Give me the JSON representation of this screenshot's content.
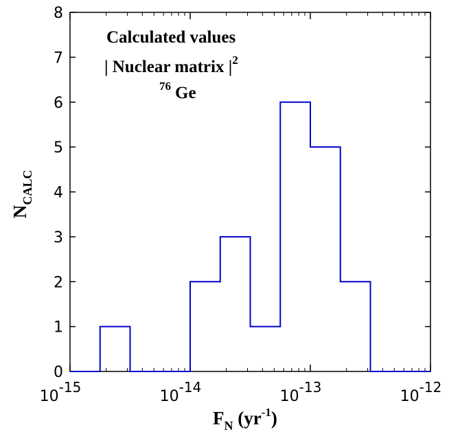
{
  "chart_data": {
    "type": "histogram",
    "xscale": "log",
    "bin_edges_log10": [
      -15.0,
      -14.75,
      -14.5,
      -14.25,
      -14.0,
      -13.75,
      -13.5,
      -13.25,
      -13.0,
      -12.75,
      -12.5,
      -12.25,
      -12.0
    ],
    "counts": [
      0,
      1,
      0,
      0,
      2,
      3,
      1,
      6,
      5,
      2,
      0,
      0
    ],
    "xlim": [
      1e-15,
      1e-12
    ],
    "ylim": [
      0,
      8
    ],
    "y_ticks": [
      "0",
      "1",
      "2",
      "3",
      "4",
      "5",
      "6",
      "7",
      "8"
    ],
    "x_ticks": [
      {
        "base": "10",
        "exp": "-15"
      },
      {
        "base": "10",
        "exp": "-14"
      },
      {
        "base": "10",
        "exp": "-13"
      },
      {
        "base": "10",
        "exp": "-12"
      }
    ],
    "xlabel": {
      "main": "F",
      "sub": "N",
      "unit_open": " (yr",
      "unit_exp": "-1",
      "unit_close": ")"
    },
    "ylabel": {
      "main": "N",
      "sub": "CALC"
    },
    "annotations": {
      "line1": "Calculated values",
      "line2": "| Nuclear matrix |",
      "line2_sup": "2",
      "line3_sup": "76",
      "line3": "Ge"
    },
    "line_color": "#0000cc",
    "grid": false
  }
}
